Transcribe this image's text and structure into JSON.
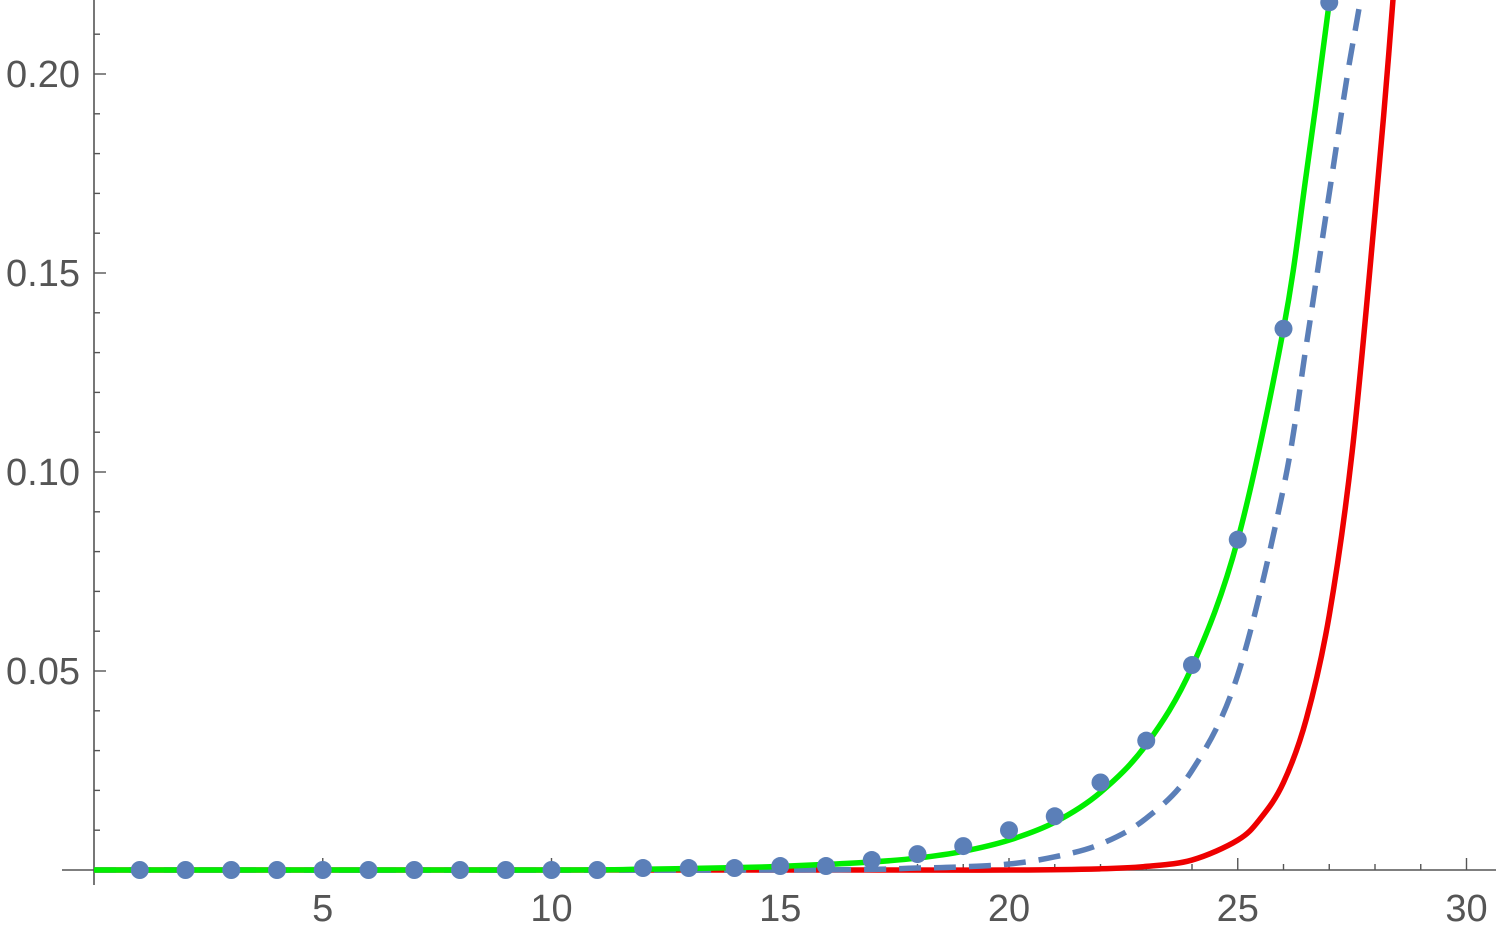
{
  "chart_data": {
    "type": "line",
    "title": "",
    "xlabel": "",
    "ylabel": "",
    "xlim": [
      0,
      30.5
    ],
    "ylim": [
      0,
      0.22
    ],
    "x_ticks": [
      "5",
      "10",
      "15",
      "20",
      "25",
      "30"
    ],
    "y_ticks": [
      "0.05",
      "0.10",
      "0.15",
      "0.20"
    ],
    "grid": false,
    "legend": "none",
    "series": [
      {
        "style": "points",
        "color": "#5b7fb8",
        "x": [
          1,
          2,
          3,
          4,
          5,
          6,
          7,
          8,
          9,
          10,
          11,
          12,
          13,
          14,
          15,
          16,
          17,
          18,
          19,
          20,
          21,
          22,
          23,
          24,
          25,
          26,
          27
        ],
        "y": [
          0,
          0,
          0,
          0,
          0,
          0,
          0,
          0,
          0,
          0,
          0,
          0.0005,
          0.0005,
          0.0005,
          0.001,
          0.001,
          0.0025,
          0.004,
          0.006,
          0.01,
          0.0135,
          0.022,
          0.0325,
          0.0515,
          0.083,
          0.136,
          0.218
        ]
      },
      {
        "style": "solid",
        "color": "#00ee00",
        "x": [
          10,
          12,
          14,
          15,
          16,
          17,
          18,
          19,
          20,
          21,
          22,
          23,
          24,
          25,
          26,
          26.5,
          27,
          27.2
        ],
        "y": [
          0,
          0.0002,
          0.0006,
          0.0009,
          0.0014,
          0.002,
          0.003,
          0.0047,
          0.0075,
          0.012,
          0.0195,
          0.0315,
          0.051,
          0.083,
          0.136,
          0.175,
          0.218,
          0.24
        ]
      },
      {
        "style": "dashed",
        "color": "#5b7fb8",
        "x": [
          15,
          18,
          19,
          20,
          21,
          22,
          23,
          24,
          25,
          26,
          26.5,
          27,
          27.4,
          27.7,
          28,
          28.15
        ],
        "y": [
          0,
          0.0005,
          0.0008,
          0.0015,
          0.0033,
          0.0065,
          0.013,
          0.025,
          0.049,
          0.096,
          0.132,
          0.17,
          0.2,
          0.22,
          0.245,
          0.26
        ]
      },
      {
        "style": "solid",
        "color": "#ee0000",
        "x": [
          15,
          20,
          22,
          23,
          24,
          25,
          25.5,
          26,
          26.5,
          27,
          27.5,
          28,
          28.3,
          28.6
        ],
        "y": [
          0,
          0,
          0.0003,
          0.0009,
          0.0025,
          0.0075,
          0.013,
          0.022,
          0.038,
          0.064,
          0.105,
          0.165,
          0.205,
          0.25
        ]
      }
    ]
  }
}
